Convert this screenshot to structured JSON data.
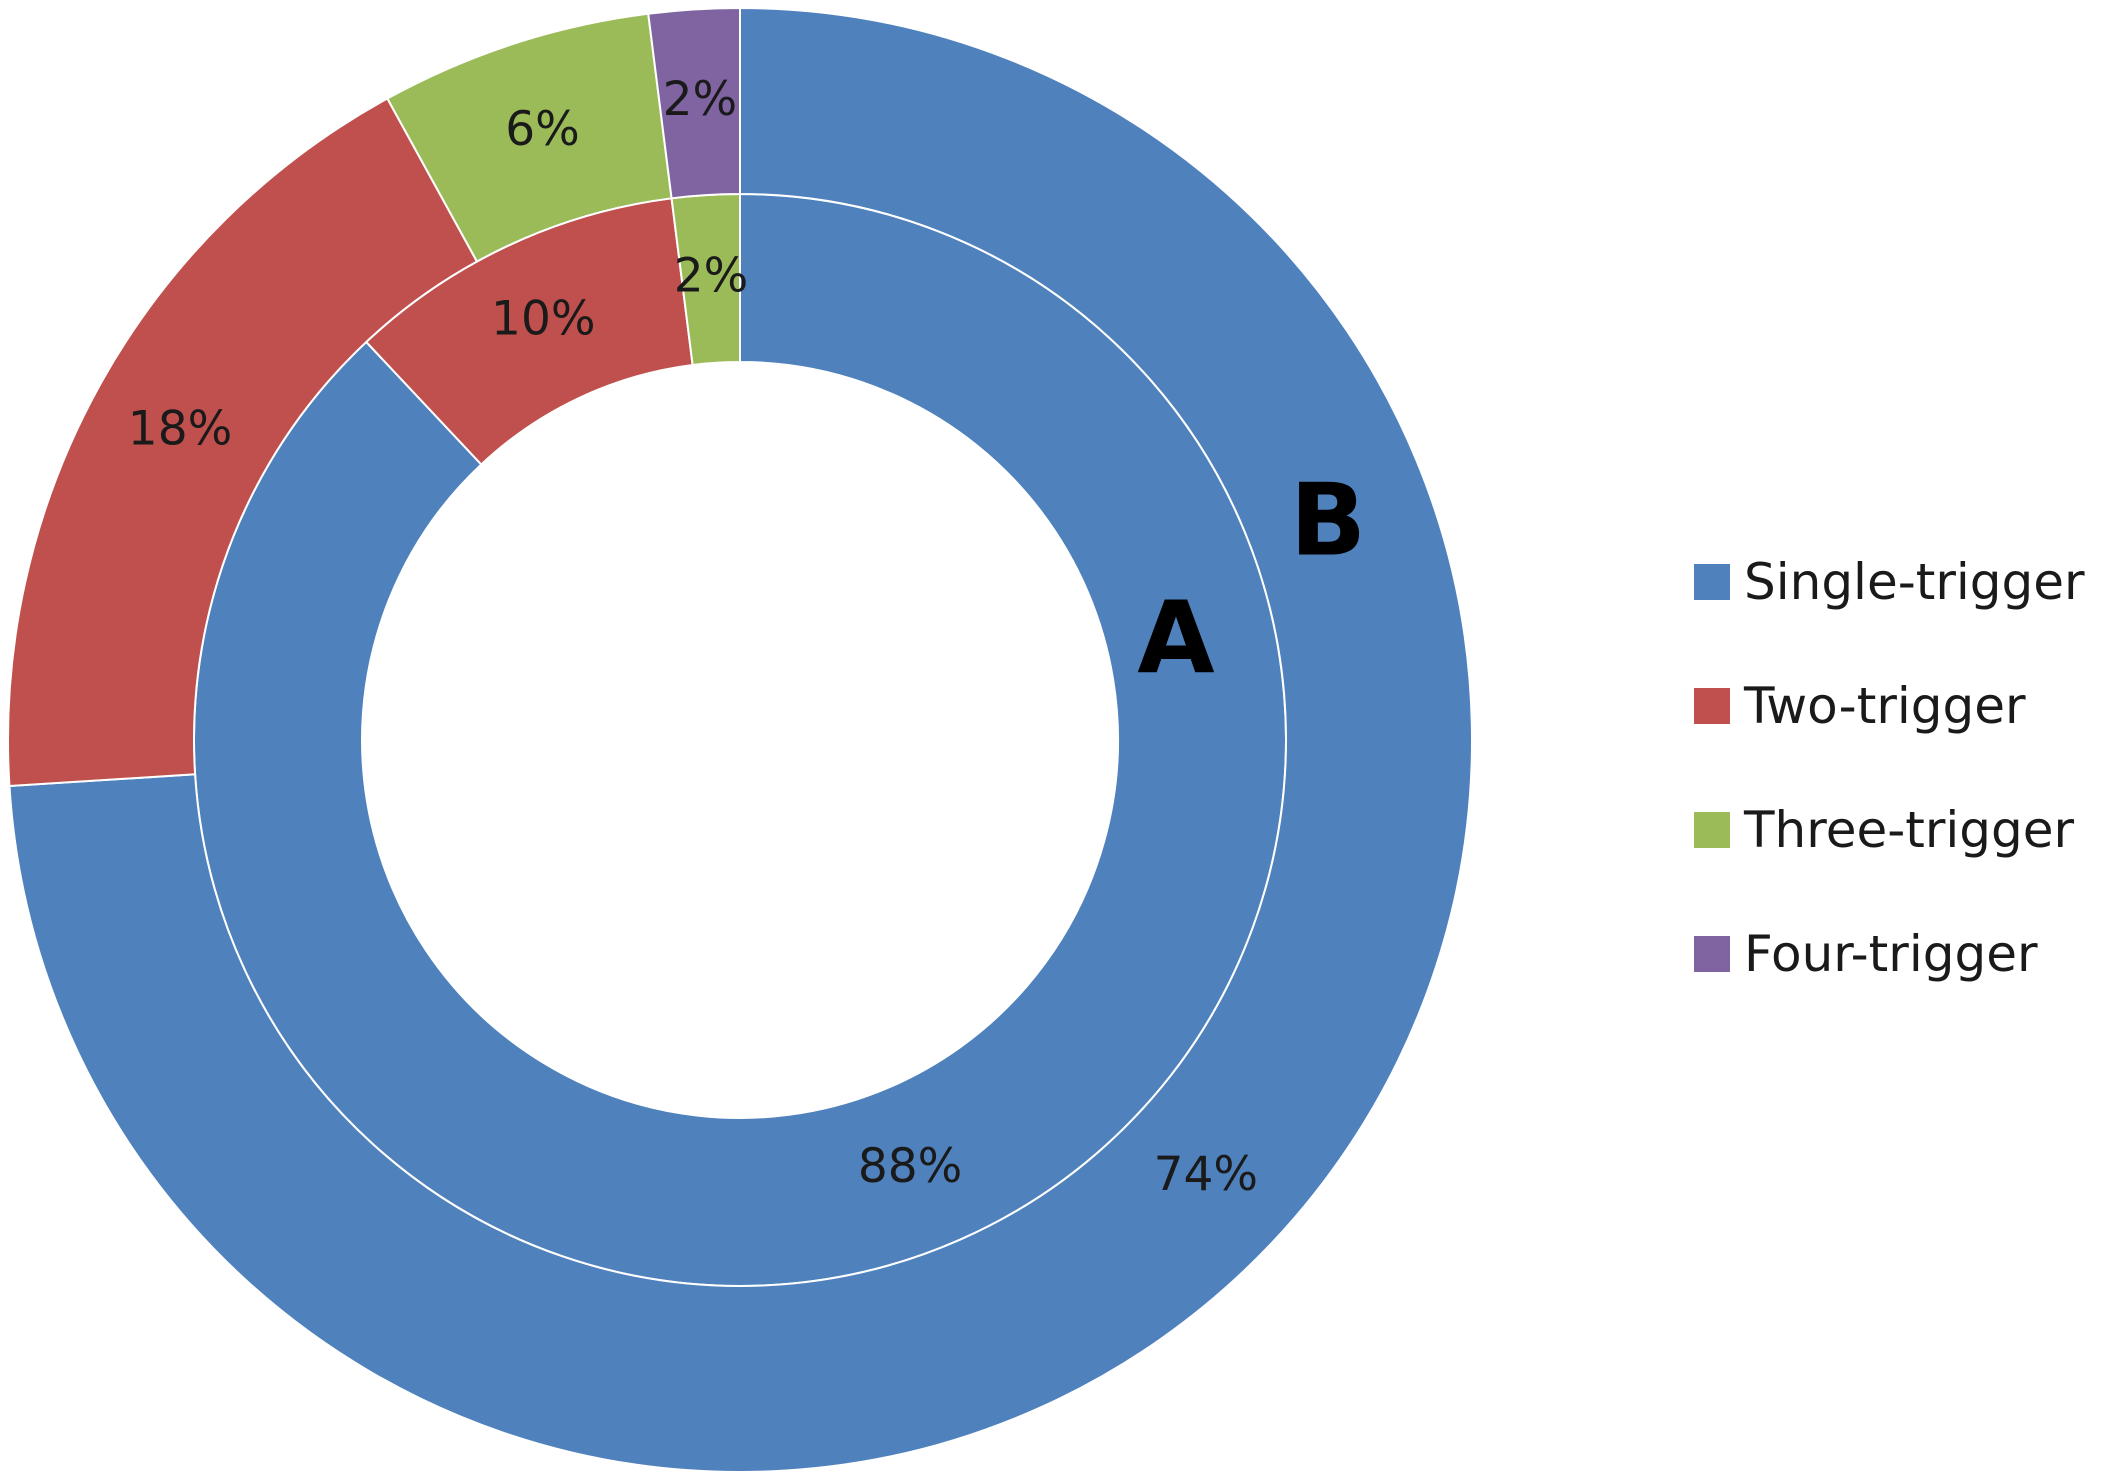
{
  "chart_data": {
    "type": "donut",
    "categories": [
      "Single-trigger",
      "Two-trigger",
      "Three-trigger",
      "Four-trigger"
    ],
    "colors": [
      "#4f81bd",
      "#c0504d",
      "#9bbb59",
      "#8064a2"
    ],
    "series": [
      {
        "name": "A",
        "values": [
          88,
          10,
          2,
          0
        ],
        "labels": [
          "88%",
          "10%",
          "2%",
          ""
        ]
      },
      {
        "name": "B",
        "values": [
          74,
          18,
          6,
          2
        ],
        "labels": [
          "74%",
          "18%",
          "6%",
          "2%"
        ]
      }
    ],
    "legend_position": "right"
  }
}
